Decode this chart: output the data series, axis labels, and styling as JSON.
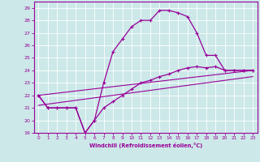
{
  "xlabel": "Windchill (Refroidissement éolien,°C)",
  "bg_color": "#cce8e8",
  "line_color": "#990099",
  "grid_color": "#ffffff",
  "xlim": [
    -0.5,
    23.5
  ],
  "ylim": [
    19,
    29.5
  ],
  "yticks": [
    19,
    20,
    21,
    22,
    23,
    24,
    25,
    26,
    27,
    28,
    29
  ],
  "xticks": [
    0,
    1,
    2,
    3,
    4,
    5,
    6,
    7,
    8,
    9,
    10,
    11,
    12,
    13,
    14,
    15,
    16,
    17,
    18,
    19,
    20,
    21,
    22,
    23
  ],
  "line1_x": [
    0,
    1,
    2,
    3,
    4,
    5,
    6,
    7,
    8,
    9,
    10,
    11,
    12,
    13,
    14,
    15,
    16,
    17,
    18,
    19,
    20,
    21,
    22,
    23
  ],
  "line1_y": [
    22,
    21,
    21,
    21,
    21,
    19,
    20,
    23,
    25.5,
    26.5,
    27.5,
    28,
    28,
    28.8,
    28.8,
    28.6,
    28.3,
    27,
    25.2,
    25.2,
    24.0,
    24.0,
    24.0,
    24.0
  ],
  "line2_x": [
    0,
    1,
    2,
    3,
    4,
    5,
    6,
    7,
    8,
    9,
    10,
    11,
    12,
    13,
    14,
    15,
    16,
    17,
    18,
    19,
    20,
    21,
    22,
    23
  ],
  "line2_y": [
    22,
    21,
    21,
    21,
    21,
    19,
    20,
    21,
    21.5,
    22.0,
    22.5,
    23.0,
    23.2,
    23.5,
    23.7,
    24.0,
    24.2,
    24.3,
    24.2,
    24.3,
    24.0,
    24.0,
    24.0,
    24.0
  ],
  "line3_x": [
    0,
    23
  ],
  "line3_y": [
    22,
    24.0
  ],
  "line4_x": [
    0,
    23
  ],
  "line4_y": [
    21.2,
    23.5
  ]
}
